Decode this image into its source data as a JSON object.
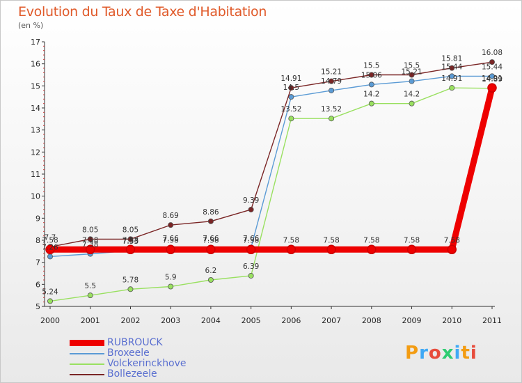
{
  "title": "Evolution du Taux de Taxe d'Habitation",
  "unit": "(en %)",
  "logo": {
    "text": "Proxiti",
    "colors": [
      "#f39c12",
      "#3fa9f5",
      "#e74c3c",
      "#2ecc71",
      "#3fa9f5",
      "#f39c12",
      "#e74c3c"
    ]
  },
  "chart_data": {
    "type": "line",
    "x": [
      "2000",
      "2001",
      "2002",
      "2003",
      "2004",
      "2005",
      "2006",
      "2007",
      "2008",
      "2009",
      "2010",
      "2011"
    ],
    "ylim": [
      5,
      17
    ],
    "yticks": [
      5,
      6,
      7,
      8,
      9,
      10,
      11,
      12,
      13,
      14,
      15,
      16,
      17
    ],
    "grid": false,
    "legend": "bottom-left",
    "series": [
      {
        "name": "RUBROUCK",
        "color": "#ee0000",
        "values": [
          7.58,
          7.58,
          7.58,
          7.58,
          7.58,
          7.58,
          7.58,
          7.58,
          7.58,
          7.58,
          7.58,
          14.91
        ],
        "labels": [
          "7.58",
          "7.58",
          "7.58",
          "7.58",
          "7.58",
          "7.58",
          "7.58",
          "7.58",
          "7.58",
          "7.58",
          "7.58",
          "14.91"
        ]
      },
      {
        "name": "Broxeele",
        "color": "#5b9bd5",
        "values": [
          7.26,
          7.38,
          7.53,
          7.66,
          7.66,
          7.66,
          14.5,
          14.79,
          15.06,
          15.21,
          15.44,
          15.44
        ],
        "labels": [
          "7.26",
          "7.38",
          "7.53",
          "7.66",
          "7.66",
          "7.66",
          "14.5",
          "14.79",
          "15.06",
          "15.21",
          "15.44",
          "15.44"
        ]
      },
      {
        "name": "Volckerinckhove",
        "color": "#99e060",
        "values": [
          5.24,
          5.5,
          5.78,
          5.9,
          6.2,
          6.39,
          13.52,
          13.52,
          14.2,
          14.2,
          14.91,
          14.89
        ],
        "labels": [
          "5.24",
          "5.5",
          "5.78",
          "5.9",
          "6.2",
          "6.39",
          "13.52",
          "13.52",
          "14.2",
          "14.2",
          "14.91",
          "14.89"
        ]
      },
      {
        "name": "Bollezeele",
        "color": "#7a2525",
        "values": [
          7.7,
          8.05,
          8.05,
          8.69,
          8.86,
          9.39,
          14.91,
          15.21,
          15.5,
          15.5,
          15.81,
          16.08
        ],
        "labels": [
          "7.7",
          "8.05",
          "8.05",
          "8.69",
          "8.86",
          "9.39",
          "14.91",
          "15.21",
          "15.5",
          "15.5",
          "15.81",
          "16.08"
        ]
      }
    ]
  }
}
